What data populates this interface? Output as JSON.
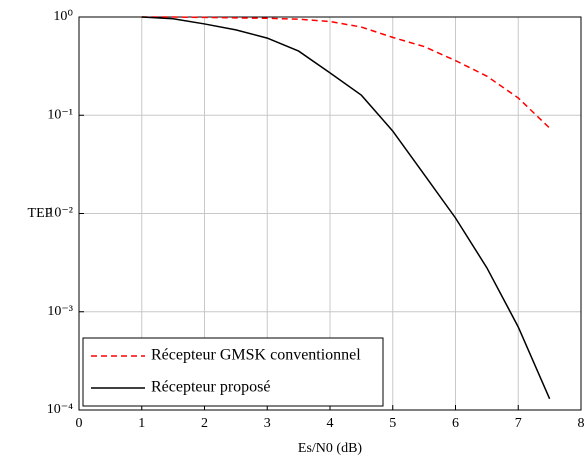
{
  "chart_data": {
    "type": "line",
    "xlabel": "Es/N0 (dB)",
    "ylabel": "TEP",
    "xlim": [
      0,
      8
    ],
    "xticks": [
      0,
      1,
      2,
      3,
      4,
      5,
      6,
      7,
      8
    ],
    "ylim": [
      0.0001,
      1
    ],
    "log_y": true,
    "grid": true,
    "legend": "lower left",
    "yticks": [
      {
        "value": 0.0001,
        "label": "10⁻⁴"
      },
      {
        "value": 0.001,
        "label": "10⁻³"
      },
      {
        "value": 0.01,
        "label": "10⁻²"
      },
      {
        "value": 0.1,
        "label": "10⁻¹"
      },
      {
        "value": 1,
        "label": "10⁰"
      }
    ],
    "series": [
      {
        "name": "Récepteur GMSK conventionnel",
        "color": "#ff0000",
        "dashed": true,
        "x": [
          1,
          1.5,
          2,
          2.5,
          3,
          3.5,
          4,
          4.5,
          5,
          5.5,
          6,
          6.5,
          7,
          7.5
        ],
        "values": [
          1.0,
          1.0,
          0.99,
          0.98,
          0.97,
          0.95,
          0.9,
          0.79,
          0.62,
          0.5,
          0.36,
          0.25,
          0.15,
          0.074
        ]
      },
      {
        "name": "Récepteur proposé",
        "color": "#000000",
        "dashed": false,
        "x": [
          1,
          1.5,
          2,
          2.5,
          3,
          3.5,
          4,
          4.5,
          5,
          5.5,
          6,
          6.5,
          7,
          7.5
        ],
        "values": [
          1.0,
          0.96,
          0.85,
          0.74,
          0.61,
          0.45,
          0.27,
          0.16,
          0.069,
          0.025,
          0.009,
          0.0028,
          0.0007,
          0.00013
        ]
      }
    ]
  }
}
